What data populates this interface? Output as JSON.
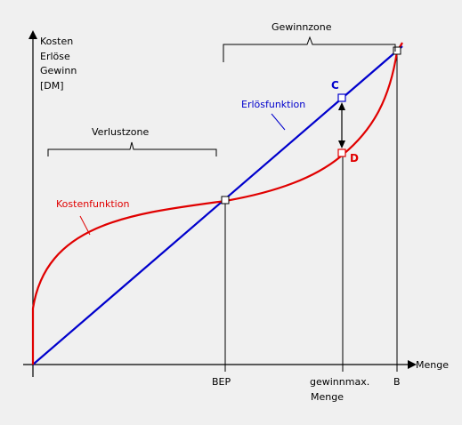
{
  "diagram": {
    "y_axis_label_lines": [
      "Kosten",
      "Erlöse",
      "Gewinn",
      "[DM]"
    ],
    "x_axis_label": "Menge",
    "zones": {
      "loss": "Verlustzone",
      "profit": "Gewinnzone"
    },
    "curves": {
      "cost": {
        "label": "Kostenfunktion",
        "color": "#e00000"
      },
      "revenue": {
        "label": "Erlösfunktion",
        "color": "#0000cc"
      }
    },
    "points": {
      "c": "C",
      "d": "D"
    },
    "x_ticks": {
      "bep": "BEP",
      "gewinn_line1": "gewinnmax.",
      "gewinn_line2": "Menge",
      "b": "B"
    }
  }
}
